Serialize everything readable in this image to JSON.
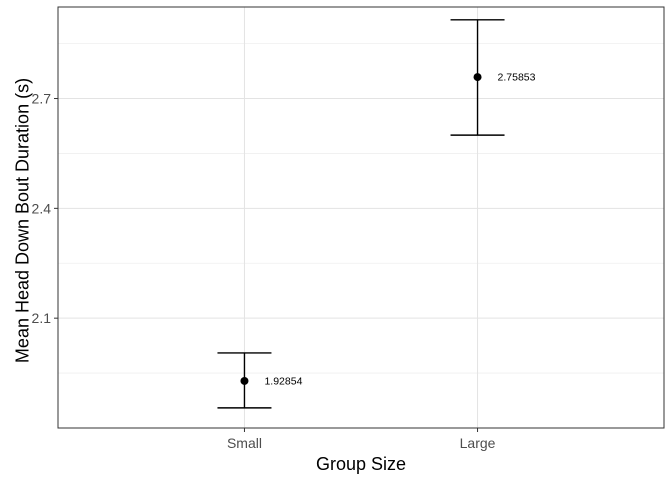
{
  "chart_data": {
    "type": "scatter",
    "title": "",
    "xlabel": "Group Size",
    "ylabel": "Mean Head Down Bout Duration (s)",
    "categories": [
      "Small",
      "Large"
    ],
    "values": [
      1.92854,
      2.75853
    ],
    "error_lower": [
      1.855,
      2.6
    ],
    "error_upper": [
      2.005,
      2.915
    ],
    "data_labels": [
      "1.92854",
      "2.75853"
    ],
    "ylim": [
      1.8,
      2.95
    ],
    "yticks": [
      2.1,
      2.4,
      2.7
    ],
    "ytick_labels": [
      "2.1",
      "2.4",
      "2.7"
    ],
    "grid": true,
    "legend": "none"
  }
}
